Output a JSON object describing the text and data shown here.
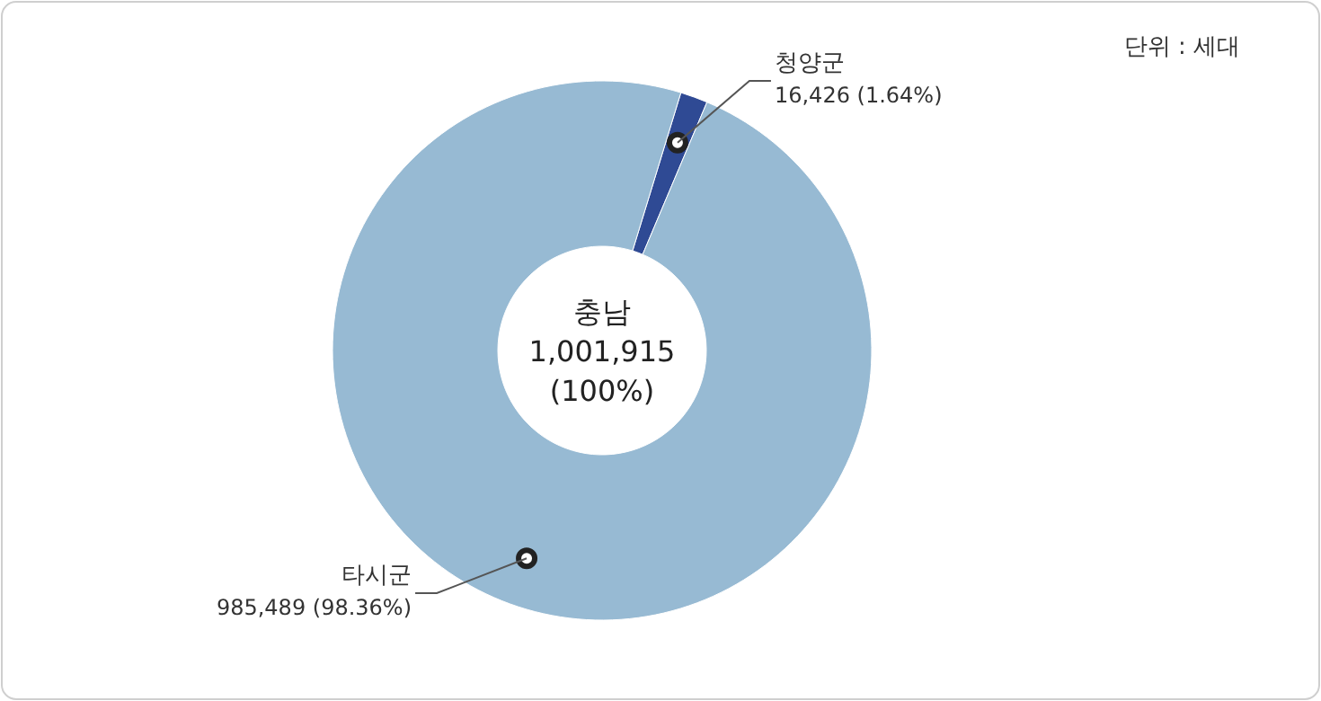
{
  "chart_data": {
    "type": "donut",
    "categories": [
      "청양군",
      "타시군"
    ],
    "values": [
      16426,
      985489
    ],
    "colors": [
      "#2f4a94",
      "#97bad3"
    ],
    "value_labels": [
      "16,426 (1.64%)",
      "985,489 (98.36%)"
    ],
    "annotations": [
      "단위 : 세대",
      "충남",
      "1,001,915",
      "(100%)"
    ]
  }
}
